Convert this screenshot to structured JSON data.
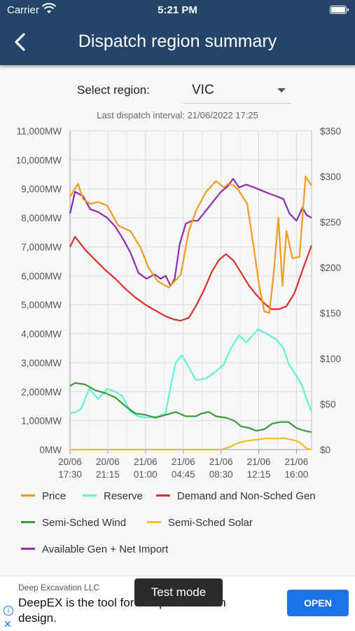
{
  "status_bar": {
    "carrier": "Carrier",
    "time": "5:21 PM"
  },
  "app_bar": {
    "title": "Dispatch region summary"
  },
  "region": {
    "label": "Select region:",
    "value": "VIC"
  },
  "interval_text": "Last dispatch interval: 21/06/2022 17:25",
  "chart_data": {
    "type": "line",
    "left_axis": {
      "min": 0,
      "max": 11000,
      "ticks": [
        "0MW",
        "1,000MW",
        "2,000MW",
        "3,000MW",
        "4,000MW",
        "5,000MW",
        "6,000MW",
        "7,000MW",
        "8,000MW",
        "9,000MW",
        "10,000MW",
        "11,000MW"
      ]
    },
    "right_axis": {
      "min": 0,
      "max": 350,
      "ticks": [
        "$0",
        "$50",
        "$100",
        "$150",
        "$200",
        "$250",
        "$300",
        "$350"
      ]
    },
    "x_ticks": [
      [
        "20/06",
        "17:30"
      ],
      [
        "20/06",
        "21:15"
      ],
      [
        "21/06",
        "01:00"
      ],
      [
        "21/06",
        "04:45"
      ],
      [
        "21/06",
        "08:30"
      ],
      [
        "21/06",
        "12:15"
      ],
      [
        "21/06",
        "16:00"
      ]
    ],
    "x_range": [
      17.5,
      41.5
    ],
    "series": [
      {
        "name": "Price",
        "color": "#f39a1e",
        "axis": "right",
        "x": [
          17.5,
          18.3,
          18.8,
          19.5,
          20.3,
          21.2,
          22.3,
          23.5,
          24.5,
          25.3,
          26.2,
          27.3,
          28.5,
          29.3,
          30.0,
          31.0,
          32.0,
          32.8,
          33.2,
          33.8,
          34.3,
          35.1,
          35.8,
          36.3,
          36.8,
          37.3,
          37.7,
          38.2,
          38.6,
          39.0,
          39.6,
          40.3,
          40.9,
          41.5
        ],
        "values": [
          278,
          292,
          275,
          270,
          272,
          268,
          246,
          240,
          222,
          200,
          185,
          178,
          192,
          240,
          262,
          283,
          295,
          288,
          292,
          290,
          284,
          270,
          218,
          180,
          152,
          150,
          190,
          255,
          180,
          240,
          210,
          212,
          300,
          290
        ]
      },
      {
        "name": "Reserve",
        "color": "#5ef2d6",
        "axis": "left",
        "x": [
          17.5,
          18.1,
          18.6,
          19.4,
          20.3,
          21.2,
          22.0,
          22.7,
          23.5,
          24.3,
          25.3,
          26.2,
          27.0,
          27.5,
          28.0,
          28.6,
          29.3,
          30.0,
          31.0,
          32.0,
          32.8,
          33.5,
          34.3,
          35.0,
          35.5,
          36.2,
          36.8,
          37.3,
          38.0,
          38.7,
          39.3,
          39.9,
          40.5,
          41.0,
          41.5
        ],
        "values": [
          1250,
          1300,
          1400,
          2100,
          1750,
          2100,
          2000,
          1850,
          1300,
          1150,
          1100,
          1150,
          1250,
          2200,
          3000,
          3250,
          2850,
          2400,
          2450,
          2700,
          2950,
          3500,
          3950,
          3700,
          3900,
          4150,
          4050,
          3950,
          3800,
          3500,
          2900,
          2600,
          2250,
          1750,
          1300
        ]
      },
      {
        "name": "Demand and Non-Sched Gen",
        "color": "#d8302b",
        "axis": "left",
        "x": [
          17.5,
          18.0,
          19.0,
          20.0,
          21.0,
          22.0,
          23.0,
          24.0,
          25.0,
          26.0,
          27.0,
          27.8,
          28.5,
          29.3,
          30.0,
          30.8,
          31.6,
          32.3,
          33.0,
          33.8,
          34.5,
          35.3,
          36.0,
          36.8,
          37.5,
          38.3,
          39.0,
          39.8,
          40.6,
          41.5
        ],
        "values": [
          7000,
          7350,
          6900,
          6550,
          6200,
          5900,
          5550,
          5250,
          5000,
          4800,
          4600,
          4500,
          4450,
          4550,
          4950,
          5500,
          6150,
          6550,
          6750,
          6500,
          6100,
          5650,
          5350,
          5050,
          4850,
          4850,
          4950,
          5400,
          6200,
          7050
        ]
      },
      {
        "name": "Semi-Sched Wind",
        "color": "#3a9a3b",
        "axis": "left",
        "x": [
          17.5,
          18.0,
          19.0,
          20.0,
          21.0,
          22.0,
          23.0,
          24.0,
          25.0,
          26.0,
          27.0,
          28.0,
          29.0,
          30.0,
          30.6,
          31.3,
          32.0,
          33.0,
          33.8,
          34.5,
          35.3,
          36.0,
          36.8,
          37.6,
          38.4,
          39.2,
          40.0,
          40.8,
          41.5
        ],
        "values": [
          2200,
          2300,
          2250,
          2050,
          1950,
          1800,
          1500,
          1250,
          1200,
          1100,
          1200,
          1300,
          1150,
          1150,
          1250,
          1300,
          1150,
          1100,
          1000,
          800,
          750,
          650,
          700,
          900,
          950,
          950,
          750,
          650,
          600
        ]
      },
      {
        "name": "Semi-Sched Solar",
        "color": "#f2bb2a",
        "axis": "left",
        "x": [
          17.5,
          30.0,
          31.2,
          31.8,
          32.5,
          33.3,
          34.2,
          35.0,
          36.0,
          37.0,
          38.0,
          38.8,
          39.5,
          40.0,
          40.5,
          41.0,
          41.5
        ],
        "values": [
          0,
          0,
          0,
          0,
          0,
          80,
          230,
          300,
          340,
          390,
          380,
          400,
          340,
          300,
          200,
          40,
          0
        ]
      },
      {
        "name": "Available Gen + Net Import",
        "color": "#8b2dae",
        "axis": "left",
        "x": [
          17.5,
          18.0,
          18.8,
          19.5,
          20.3,
          21.2,
          22.0,
          22.8,
          23.5,
          24.3,
          25.1,
          25.9,
          26.5,
          27.0,
          27.5,
          27.9,
          28.4,
          29.0,
          29.6,
          30.2,
          31.0,
          31.8,
          32.5,
          33.2,
          33.7,
          34.3,
          35.0,
          35.8,
          36.5,
          37.2,
          38.0,
          38.7,
          39.3,
          40.0,
          40.6,
          41.0,
          41.5
        ],
        "values": [
          8150,
          8900,
          8750,
          8300,
          8200,
          8000,
          7700,
          7250,
          6800,
          6100,
          5900,
          6050,
          5900,
          6000,
          5650,
          5900,
          7100,
          7800,
          7900,
          7900,
          8250,
          8600,
          8900,
          9100,
          9350,
          9050,
          9150,
          9050,
          8950,
          8850,
          8750,
          8650,
          8150,
          7900,
          8350,
          8100,
          8000
        ]
      }
    ]
  },
  "legend": [
    {
      "label": "Price",
      "color": "#f39a1e"
    },
    {
      "label": "Reserve",
      "color": "#5ef2d6"
    },
    {
      "label": "Demand and Non-Sched Gen",
      "color": "#d8302b"
    },
    {
      "label": "Semi-Sched Wind",
      "color": "#3a9a3b"
    },
    {
      "label": "Semi-Sched Solar",
      "color": "#f2bb2a"
    },
    {
      "label": "Available Gen + Net Import",
      "color": "#8b2dae"
    }
  ],
  "ad": {
    "advertiser": "Deep Excavation LLC",
    "headline": "DeepEX is the tool for Deep excavation design.",
    "open_label": "OPEN",
    "info_glyph": "i",
    "close_glyph": "✕"
  },
  "test_mode_label": "Test mode"
}
